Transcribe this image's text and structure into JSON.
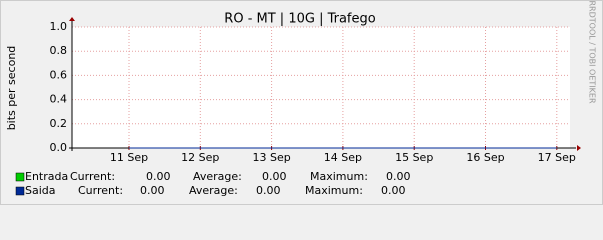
{
  "chart_data": {
    "type": "line",
    "title": "RO - MT | 10G | Trafego",
    "y_label": "bits per second",
    "watermark": "RRDTOOL / TOBI OETIKER",
    "categories": [
      "11 Sep",
      "12 Sep",
      "13 Sep",
      "14 Sep",
      "15 Sep",
      "16 Sep",
      "17 Sep"
    ],
    "ylim": [
      0,
      1
    ],
    "yticks": [
      {
        "value": 0,
        "label": "0.0"
      },
      {
        "value": 0.2,
        "label": "0.2"
      },
      {
        "value": 0.4,
        "label": "0.4"
      },
      {
        "value": 0.6,
        "label": "0.6"
      },
      {
        "value": 0.8,
        "label": "0.8"
      },
      {
        "value": 1,
        "label": "1.0"
      }
    ],
    "grid": true,
    "stat_labels": [
      "Current:",
      "Average:",
      "Maximum:"
    ],
    "series": [
      {
        "name": "Entrada",
        "color": "#00cc00",
        "values": [
          0,
          0,
          0,
          0,
          0,
          0,
          0
        ],
        "stats": [
          {
            "value": 0,
            "label": "0.00"
          },
          {
            "value": 0,
            "label": "0.00"
          },
          {
            "value": 0,
            "label": "0.00"
          }
        ]
      },
      {
        "name": "Saida",
        "color": "#002a97",
        "values": [
          0,
          0,
          0,
          0,
          0,
          0,
          0
        ],
        "stats": [
          {
            "value": 0,
            "label": "0.00"
          },
          {
            "value": 0,
            "label": "0.00"
          },
          {
            "value": 0,
            "label": "0.00"
          }
        ]
      }
    ]
  }
}
